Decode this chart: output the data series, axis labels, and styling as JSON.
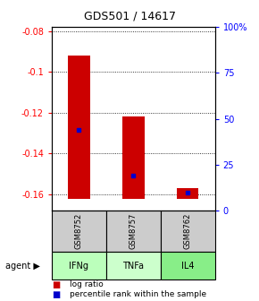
{
  "title": "GDS501 / 14617",
  "samples": [
    "GSM8752",
    "GSM8757",
    "GSM8762"
  ],
  "agents": [
    "IFNg",
    "TNFa",
    "IL4"
  ],
  "log_ratios": [
    -0.092,
    -0.122,
    -0.157
  ],
  "log_ratio_bottoms": [
    -0.162,
    -0.162,
    -0.162
  ],
  "percentile_ranks_pct": [
    44,
    19,
    10
  ],
  "ylim_left": [
    -0.168,
    -0.078
  ],
  "ylim_right": [
    0,
    100
  ],
  "left_ticks": [
    -0.16,
    -0.14,
    -0.12,
    -0.1,
    -0.08
  ],
  "right_ticks": [
    0,
    25,
    50,
    75,
    100
  ],
  "right_tick_labels": [
    "0",
    "25",
    "50",
    "75",
    "100%"
  ],
  "bar_color": "#cc0000",
  "dot_color": "#0000cc",
  "agent_colors": [
    "#bbffbb",
    "#ccffcc",
    "#88ee88"
  ],
  "sample_bg": "#cccccc",
  "bar_width": 0.4,
  "title_fontsize": 9,
  "tick_fontsize": 7,
  "label_fontsize": 7,
  "legend_fontsize": 6.5
}
